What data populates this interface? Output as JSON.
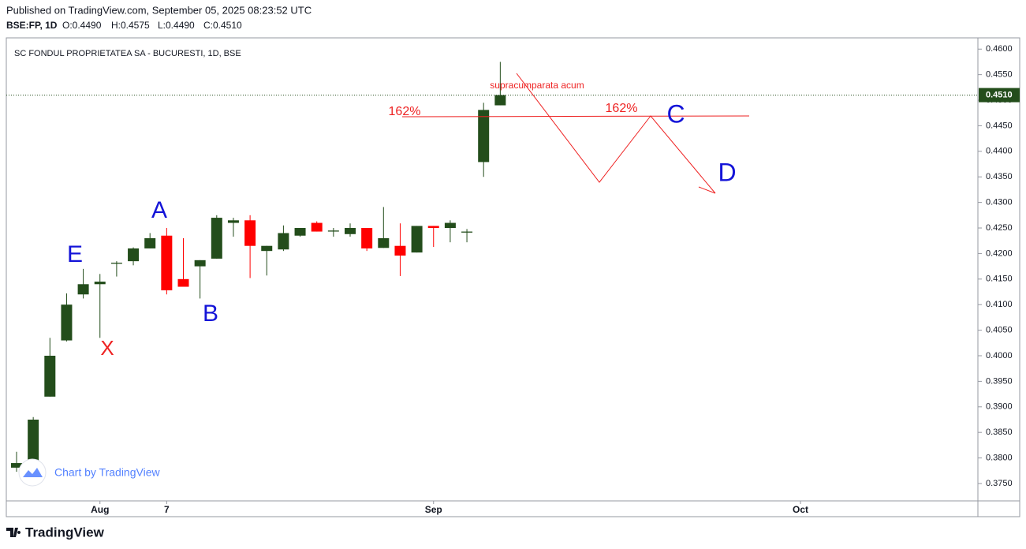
{
  "header": {
    "published": "Published on TradingView.com, September 05, 2025 08:23:52 UTC",
    "symbol": "BSE:FP, 1D",
    "ohlc": [
      "O:0.4490",
      "H:0.4575",
      "L:0.4490",
      "C:0.4510"
    ]
  },
  "chart_data": {
    "type": "candlestick",
    "title": "SC FONDUL PROPRIETATEA SA - BUCURESTI, 1D, BSE",
    "categories": [
      null,
      null,
      null,
      null,
      null,
      "Aug",
      null,
      null,
      null,
      "7",
      null,
      null,
      null,
      null,
      null,
      null,
      null,
      null,
      null,
      null,
      null,
      null,
      null,
      null,
      null,
      "Sep",
      null,
      null,
      null,
      null,
      null,
      null,
      null,
      null,
      null,
      null,
      null,
      null,
      null,
      null,
      null,
      null,
      null,
      null,
      null,
      null,
      null,
      "Oct",
      null,
      null,
      null,
      null,
      null,
      null,
      null,
      null,
      null,
      null
    ],
    "open": [
      0.3781,
      0.379,
      0.392,
      0.403,
      0.412,
      0.414,
      0.418,
      0.4185,
      0.421,
      0.4235,
      0.415,
      0.4175,
      0.419,
      0.426,
      0.4265,
      0.4205,
      0.4208,
      0.4235,
      0.426,
      0.4243,
      0.4238,
      0.425,
      0.4211,
      0.4215,
      0.4202,
      0.4254,
      0.425,
      0.4241,
      0.4379,
      0.449,
      null,
      null,
      null,
      null,
      null,
      null,
      null,
      null,
      null,
      null,
      null,
      null,
      null,
      null,
      null,
      null,
      null,
      null,
      null,
      null,
      null,
      null,
      null,
      null,
      null,
      null,
      null,
      null
    ],
    "high": [
      0.3812,
      0.388,
      0.4035,
      0.4122,
      0.417,
      0.416,
      0.4185,
      0.4212,
      0.424,
      0.425,
      0.423,
      0.4187,
      0.4275,
      0.427,
      0.4275,
      0.4215,
      0.4255,
      0.425,
      0.4263,
      0.425,
      0.4259,
      0.425,
      0.4291,
      0.4259,
      0.4254,
      0.4254,
      0.4265,
      0.4248,
      0.4495,
      0.4575,
      null,
      null,
      null,
      null,
      null,
      null,
      null,
      null,
      null,
      null,
      null,
      null,
      null,
      null,
      null,
      null,
      null,
      null,
      null,
      null,
      null,
      null,
      null,
      null,
      null,
      null,
      null,
      null
    ],
    "low": [
      0.3773,
      0.379,
      0.392,
      0.4028,
      0.4112,
      0.4035,
      0.4155,
      0.4177,
      0.421,
      0.412,
      0.4135,
      0.4112,
      0.419,
      0.4233,
      0.4152,
      0.4157,
      0.4205,
      0.4233,
      0.4243,
      0.4233,
      0.4233,
      0.4205,
      0.4211,
      0.4156,
      0.4202,
      0.4213,
      0.4222,
      0.4222,
      0.435,
      0.449,
      null,
      null,
      null,
      null,
      null,
      null,
      null,
      null,
      null,
      null,
      null,
      null,
      null,
      null,
      null,
      null,
      null,
      null,
      null,
      null,
      null,
      null,
      null,
      null,
      null,
      null,
      null,
      null
    ],
    "close": [
      0.379,
      0.3875,
      0.4,
      0.41,
      0.414,
      0.4145,
      0.4182,
      0.421,
      0.423,
      0.4128,
      0.4135,
      0.4187,
      0.427,
      0.4265,
      0.4215,
      0.4215,
      0.424,
      0.425,
      0.4243,
      0.4245,
      0.425,
      0.421,
      0.423,
      0.4196,
      0.4254,
      0.425,
      0.426,
      0.4243,
      0.4481,
      0.451,
      null,
      null,
      null,
      null,
      null,
      null,
      null,
      null,
      null,
      null,
      null,
      null,
      null,
      null,
      null,
      null,
      null,
      null,
      null,
      null,
      null,
      null,
      null,
      null,
      null,
      null,
      null,
      null
    ],
    "up_color": "#234d1b",
    "down_color": "#ff0000",
    "ylim": [
      0.3716,
      0.4622
    ],
    "yticks": [
      {
        "value": 0.375,
        "label": "0.3750"
      },
      {
        "value": 0.38,
        "label": "0.3800"
      },
      {
        "value": 0.385,
        "label": "0.3850"
      },
      {
        "value": 0.39,
        "label": "0.3900"
      },
      {
        "value": 0.395,
        "label": "0.3950"
      },
      {
        "value": 0.4,
        "label": "0.4000"
      },
      {
        "value": 0.405,
        "label": "0.4050"
      },
      {
        "value": 0.41,
        "label": "0.4100"
      },
      {
        "value": 0.415,
        "label": "0.4150"
      },
      {
        "value": 0.42,
        "label": "0.4200"
      },
      {
        "value": 0.425,
        "label": "0.4250"
      },
      {
        "value": 0.43,
        "label": "0.4300"
      },
      {
        "value": 0.435,
        "label": "0.4350"
      },
      {
        "value": 0.44,
        "label": "0.4400"
      },
      {
        "value": 0.445,
        "label": "0.4450"
      },
      {
        "value": 0.45,
        "label": "0.4500"
      },
      {
        "value": 0.455,
        "label": "0.4550"
      },
      {
        "value": 0.46,
        "label": "0.4600"
      }
    ],
    "last_price": {
      "value": 0.451,
      "label": "0.4510"
    },
    "annotations": [
      "E",
      "X",
      "A",
      "B",
      "C",
      "D",
      "162%",
      "162%",
      "supracumparata acum"
    ],
    "watermark": "Chart by TradingView"
  },
  "footer": {
    "brand": "TradingView"
  }
}
